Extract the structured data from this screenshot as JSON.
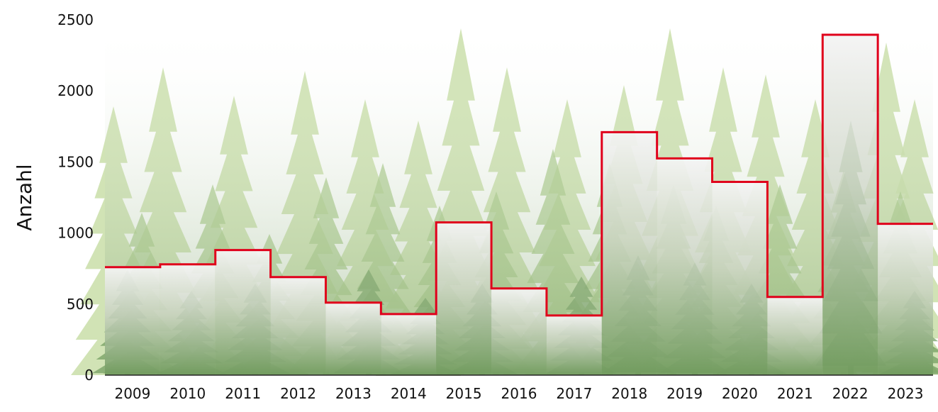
{
  "chart_data": {
    "type": "bar",
    "title": "",
    "xlabel": "",
    "ylabel": "Anzahl",
    "categories": [
      "2009",
      "2010",
      "2011",
      "2012",
      "2013",
      "2014",
      "2015",
      "2016",
      "2017",
      "2018",
      "2019",
      "2020",
      "2021",
      "2022",
      "2023"
    ],
    "values": [
      760,
      780,
      880,
      690,
      510,
      430,
      1075,
      610,
      420,
      1710,
      1525,
      1360,
      550,
      2395,
      1065
    ],
    "ylim": [
      0,
      2500
    ],
    "yticks": [
      0,
      500,
      1000,
      1500,
      2000,
      2500
    ],
    "grid": false,
    "legend": "none",
    "style": "step outline over forest background",
    "colors": {
      "step_line": "#e0001b",
      "tree_light": "#c9dea8",
      "tree_mid": "#a9c98a",
      "tree_dark": "#6f9a5c",
      "bar_fill_top": "#f3f3f3",
      "bar_fill_bottom": "#6f9a5c"
    }
  }
}
